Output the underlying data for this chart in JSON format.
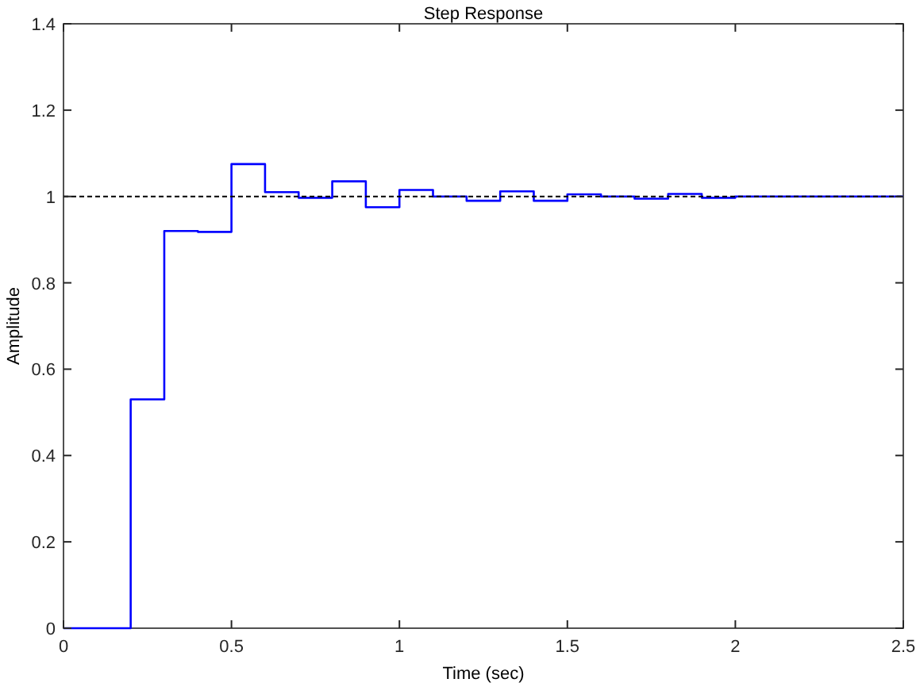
{
  "chart_data": {
    "type": "step",
    "title": "Step Response",
    "xlabel": "Time (sec)",
    "ylabel": "Amplitude",
    "x": [
      0,
      0.2,
      0.3,
      0.4,
      0.5,
      0.6,
      0.7,
      0.8,
      0.9,
      1.0,
      1.1,
      1.2,
      1.3,
      1.4,
      1.5,
      1.6,
      1.7,
      1.8,
      1.9,
      2.0,
      2.5
    ],
    "series": [
      {
        "color": "#0000ff",
        "values": [
          0,
          0.53,
          0.92,
          0.918,
          1.075,
          1.01,
          0.997,
          1.035,
          0.975,
          1.015,
          1.0,
          0.99,
          1.012,
          0.99,
          1.005,
          1.0,
          0.995,
          1.006,
          0.997,
          1.0,
          1.0
        ]
      }
    ],
    "xlim": [
      0,
      2.5
    ],
    "xticks": [
      0,
      0.5,
      1,
      1.5,
      2,
      2.5
    ],
    "ylim": [
      0,
      1.4
    ],
    "yticks": [
      0,
      0.2,
      0.4,
      0.6,
      0.8,
      1,
      1.2,
      1.4
    ],
    "ref_lines": [
      {
        "axis": "y",
        "value": 1,
        "color": "#000000",
        "line_style": "dashed"
      }
    ],
    "grid": false
  }
}
